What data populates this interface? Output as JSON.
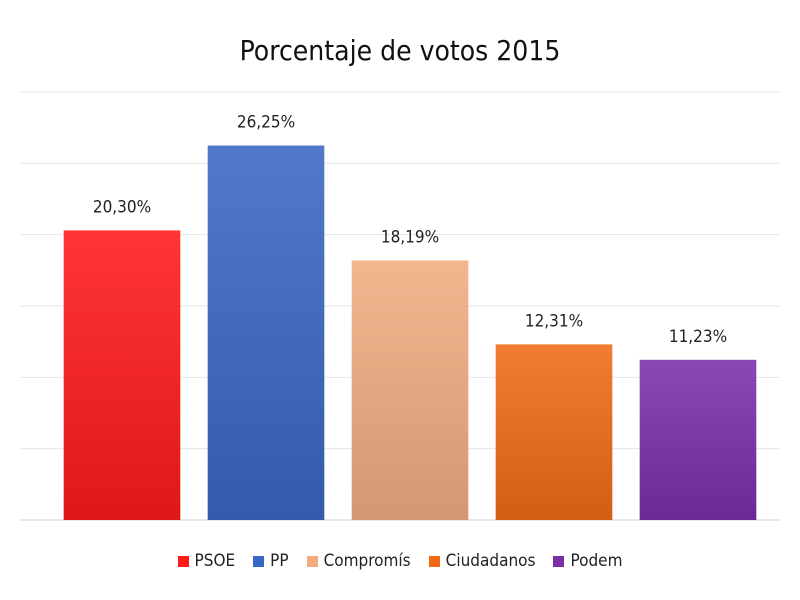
{
  "chart_data": {
    "type": "bar",
    "title": "Porcentaje de votos 2015",
    "categories": [
      "PSOE",
      "PP",
      "Compromís",
      "Ciudadanos",
      "Podem"
    ],
    "values": [
      20.3,
      26.25,
      18.19,
      12.31,
      11.23
    ],
    "data_labels": [
      "20,30%",
      "26,25%",
      "18,19%",
      "12,31%",
      "11,23%"
    ],
    "colors": [
      "#ff1a1a",
      "#3a66c4",
      "#f2ac80",
      "#f06a16",
      "#7a2fa8"
    ],
    "ylim": [
      0,
      30
    ],
    "grid": true,
    "legend_position": "bottom",
    "xlabel": "",
    "ylabel": ""
  }
}
